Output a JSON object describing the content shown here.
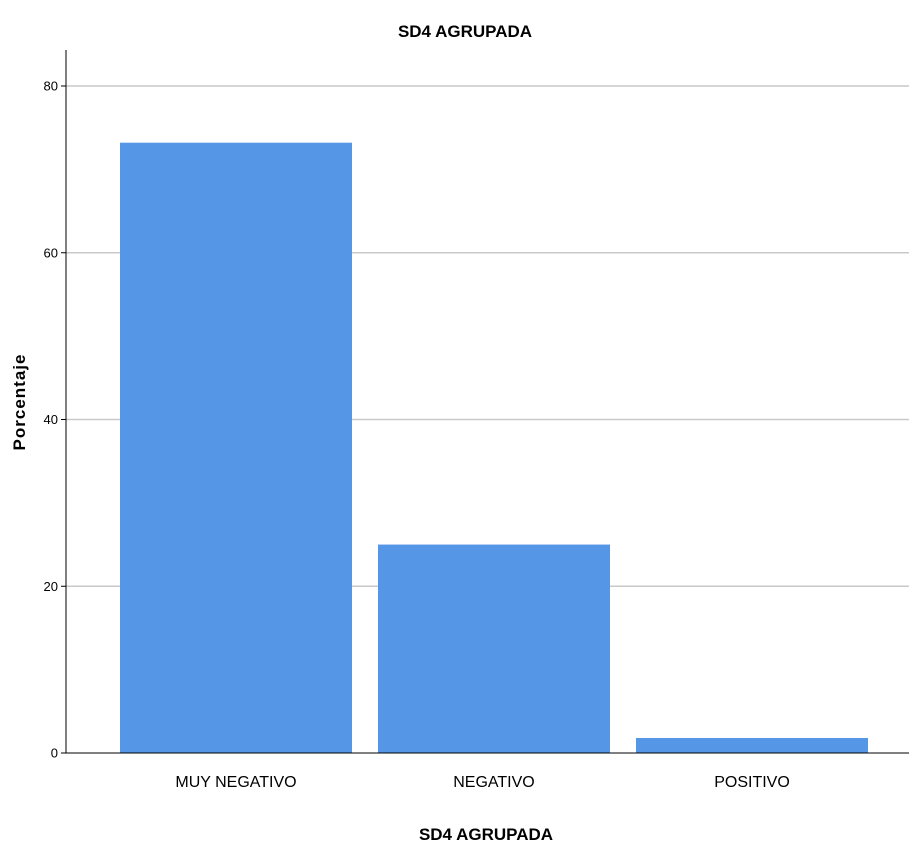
{
  "chart_data": {
    "type": "bar",
    "title": "SD4 AGRUPADA",
    "xlabel": "SD4 AGRUPADA",
    "ylabel": "Porcentaje",
    "categories": [
      "MUY NEGATIVO",
      "NEGATIVO",
      "POSITIVO"
    ],
    "values": [
      73.2,
      25.0,
      1.8
    ],
    "ylim": [
      0,
      84
    ],
    "yticks": [
      0,
      20,
      40,
      60,
      80
    ],
    "grid": true,
    "bar_color": "#5596e6",
    "grid_color": "#c9c9c9"
  }
}
